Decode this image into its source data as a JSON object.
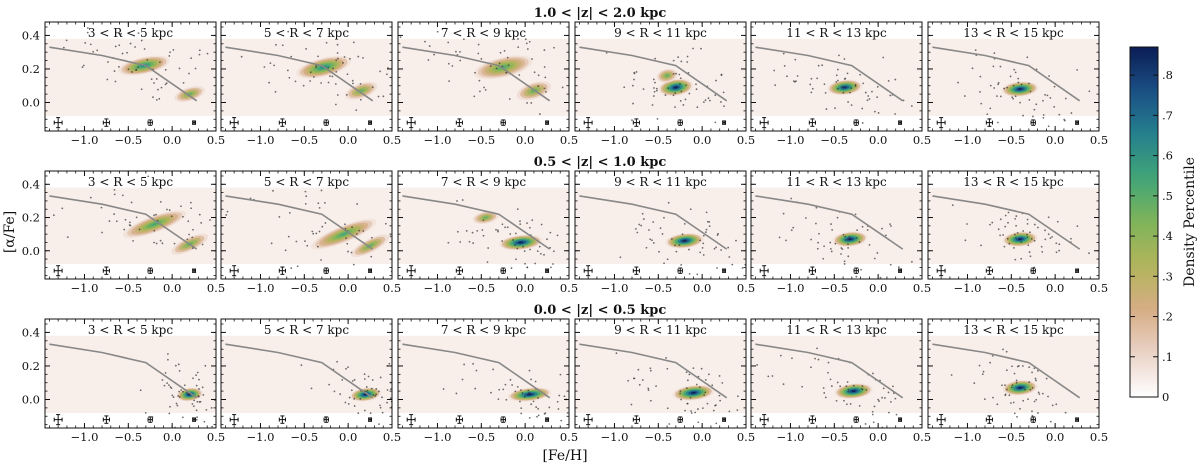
{
  "chart_data": {
    "type": "heatmap",
    "xlabel": "[Fe/H]",
    "ylabel": "[α/Fe]",
    "xlim": [
      -1.45,
      0.5
    ],
    "ylim": [
      -0.17,
      0.48
    ],
    "xticks": [
      -1.0,
      -0.5,
      0.0,
      0.5
    ],
    "xtick_labels": [
      "−1.0",
      "−0.5",
      "0.0",
      "0.5"
    ],
    "yticks": [
      0.0,
      0.2,
      0.4
    ],
    "ytick_labels": [
      "0.0",
      "0.2",
      "0.4"
    ],
    "colorbar": {
      "label": "Density Percentile",
      "min": 0,
      "max": 0.87,
      "ticks": [
        0,
        0.1,
        0.2,
        0.3,
        0.4,
        0.5,
        0.6,
        0.7,
        0.8
      ],
      "tick_labels": [
        "0",
        ".1",
        ".2",
        ".3",
        ".4",
        ".5",
        ".6",
        ".7",
        ".8"
      ],
      "colors": [
        "#ffffff",
        "#ead3c7",
        "#d6ad85",
        "#b2b45a",
        "#7fb45a",
        "#40a578",
        "#25808c",
        "#1a4f86",
        "#0b1d54"
      ]
    },
    "reference_line": {
      "fe_h": [
        -1.4,
        -0.8,
        -0.3,
        0.28
      ],
      "alpha_fe": [
        0.33,
        0.28,
        0.22,
        0.01
      ]
    },
    "error_bars": [
      {
        "fe_h": -1.3,
        "alpha_fe": -0.12,
        "xerr": 0.045,
        "yerr": 0.03
      },
      {
        "fe_h": -0.75,
        "alpha_fe": -0.12,
        "xerr": 0.035,
        "yerr": 0.022
      },
      {
        "fe_h": -0.25,
        "alpha_fe": -0.12,
        "xerr": 0.025,
        "yerr": 0.016
      },
      {
        "fe_h": 0.25,
        "alpha_fe": -0.12,
        "xerr": 0.016,
        "yerr": 0.01
      }
    ],
    "rows": [
      {
        "title": "1.0 < |z| < 2.0 kpc",
        "panels": [
          {
            "label": "3 < R < 5 kpc",
            "peak": [
              -0.32,
              0.22
            ],
            "spread": [
              0.3,
              0.05
            ],
            "angle_deg": 12,
            "peak_density": 0.6,
            "tail": [
              0.2,
              0.05
            ]
          },
          {
            "label": "5 < R < 7 kpc",
            "peak": [
              -0.28,
              0.21
            ],
            "spread": [
              0.32,
              0.055
            ],
            "angle_deg": 14,
            "peak_density": 0.6,
            "tail": [
              0.15,
              0.07
            ]
          },
          {
            "label": "7 < R < 9 kpc",
            "peak": [
              -0.25,
              0.21
            ],
            "spread": [
              0.34,
              0.06
            ],
            "angle_deg": 13,
            "peak_density": 0.48,
            "tail": [
              0.1,
              0.07
            ]
          },
          {
            "label": "9 < R < 11 kpc",
            "peak": [
              -0.3,
              0.09
            ],
            "spread": [
              0.2,
              0.05
            ],
            "angle_deg": 8,
            "peak_density": 0.85,
            "tail": [
              -0.4,
              0.16
            ]
          },
          {
            "label": "11 < R < 13 kpc",
            "peak": [
              -0.38,
              0.09
            ],
            "spread": [
              0.2,
              0.045
            ],
            "angle_deg": 6,
            "peak_density": 0.82,
            "tail": null
          },
          {
            "label": "13 < R < 15 kpc",
            "peak": [
              -0.4,
              0.08
            ],
            "spread": [
              0.21,
              0.045
            ],
            "angle_deg": 5,
            "peak_density": 0.85,
            "tail": null
          }
        ]
      },
      {
        "title": "0.5 < |z| < 1.0 kpc",
        "panels": [
          {
            "label": "3 < R < 5 kpc",
            "peak": [
              -0.2,
              0.16
            ],
            "spread": [
              0.38,
              0.05
            ],
            "angle_deg": 20,
            "peak_density": 0.5,
            "tail": [
              0.2,
              0.04
            ]
          },
          {
            "label": "5 < R < 7 kpc",
            "peak": [
              -0.05,
              0.1
            ],
            "spread": [
              0.4,
              0.05
            ],
            "angle_deg": 22,
            "peak_density": 0.5,
            "tail": [
              0.25,
              0.03
            ]
          },
          {
            "label": "7 < R < 9 kpc",
            "peak": [
              -0.05,
              0.05
            ],
            "spread": [
              0.25,
              0.045
            ],
            "angle_deg": 6,
            "peak_density": 0.85,
            "tail": [
              -0.45,
              0.2
            ]
          },
          {
            "label": "9 < R < 11 kpc",
            "peak": [
              -0.2,
              0.06
            ],
            "spread": [
              0.22,
              0.045
            ],
            "angle_deg": 6,
            "peak_density": 0.85,
            "tail": null
          },
          {
            "label": "11 < R < 13 kpc",
            "peak": [
              -0.32,
              0.07
            ],
            "spread": [
              0.2,
              0.045
            ],
            "angle_deg": 6,
            "peak_density": 0.85,
            "tail": null
          },
          {
            "label": "13 < R < 15 kpc",
            "peak": [
              -0.4,
              0.07
            ],
            "spread": [
              0.2,
              0.045
            ],
            "angle_deg": 5,
            "peak_density": 0.85,
            "tail": null
          }
        ]
      },
      {
        "title": "0.0 < |z| < 0.5 kpc",
        "panels": [
          {
            "label": "3 < R < 5 kpc",
            "peak": [
              0.2,
              0.03
            ],
            "spread": [
              0.15,
              0.04
            ],
            "angle_deg": 8,
            "peak_density": 0.85,
            "tail": null
          },
          {
            "label": "5 < R < 7 kpc",
            "peak": [
              0.2,
              0.03
            ],
            "spread": [
              0.18,
              0.04
            ],
            "angle_deg": 8,
            "peak_density": 0.85,
            "tail": null
          },
          {
            "label": "7 < R < 9 kpc",
            "peak": [
              0.05,
              0.03
            ],
            "spread": [
              0.25,
              0.04
            ],
            "angle_deg": 6,
            "peak_density": 0.85,
            "tail": null
          },
          {
            "label": "9 < R < 11 kpc",
            "peak": [
              -0.1,
              0.04
            ],
            "spread": [
              0.24,
              0.045
            ],
            "angle_deg": 6,
            "peak_density": 0.85,
            "tail": null
          },
          {
            "label": "11 < R < 13 kpc",
            "peak": [
              -0.28,
              0.05
            ],
            "spread": [
              0.22,
              0.045
            ],
            "angle_deg": 6,
            "peak_density": 0.85,
            "tail": null
          },
          {
            "label": "13 < R < 15 kpc",
            "peak": [
              -0.4,
              0.07
            ],
            "spread": [
              0.2,
              0.045
            ],
            "angle_deg": 5,
            "peak_density": 0.85,
            "tail": null
          }
        ]
      }
    ]
  }
}
